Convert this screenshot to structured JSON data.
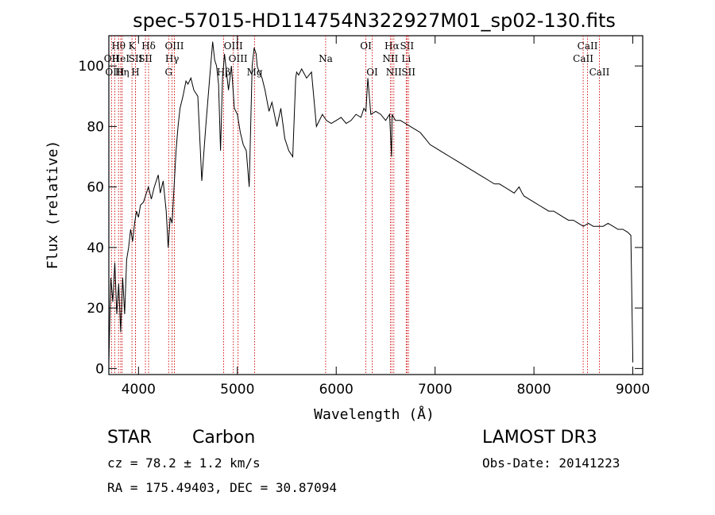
{
  "chart_data": {
    "type": "line",
    "title": "spec-57015-HD114754N322927M01_sp02-130.fits",
    "xlabel": "Wavelength (Å)",
    "ylabel": "Flux (relative)",
    "xlim": [
      3700,
      9100
    ],
    "ylim": [
      -2,
      110
    ],
    "x_ticks": [
      4000,
      5000,
      6000,
      7000,
      8000,
      9000
    ],
    "y_ticks": [
      0,
      20,
      40,
      60,
      80,
      100
    ],
    "grid": false,
    "line_color": "#000000",
    "marker_color": "#cc0000",
    "series": [
      {
        "x": [
          3700,
          3720,
          3740,
          3760,
          3780,
          3800,
          3820,
          3840,
          3860,
          3880,
          3900,
          3920,
          3940,
          3960,
          3980,
          4000,
          4020,
          4050,
          4080,
          4100,
          4130,
          4160,
          4200,
          4220,
          4250,
          4280,
          4300,
          4320,
          4340,
          4360,
          4380,
          4400,
          4420,
          4450,
          4480,
          4500,
          4530,
          4560,
          4600,
          4640,
          4680,
          4720,
          4750,
          4770,
          4790,
          4810,
          4830,
          4850,
          4870,
          4890,
          4910,
          4940,
          4970,
          5000,
          5030,
          5060,
          5090,
          5120,
          5150,
          5170,
          5190,
          5200,
          5220,
          5250,
          5280,
          5320,
          5350,
          5400,
          5440,
          5480,
          5520,
          5560,
          5590,
          5600,
          5620,
          5650,
          5700,
          5750,
          5800,
          5860,
          5900,
          5950,
          6000,
          6050,
          6100,
          6150,
          6200,
          6250,
          6280,
          6300,
          6320,
          6350,
          6400,
          6450,
          6500,
          6540,
          6560,
          6565,
          6580,
          6600,
          6650,
          6700,
          6750,
          6800,
          6850,
          6900,
          6950,
          7000,
          7050,
          7100,
          7150,
          7200,
          7250,
          7300,
          7350,
          7400,
          7450,
          7500,
          7550,
          7600,
          7650,
          7700,
          7750,
          7800,
          7850,
          7880,
          7900,
          7950,
          8000,
          8050,
          8100,
          8150,
          8200,
          8250,
          8300,
          8350,
          8400,
          8450,
          8500,
          8550,
          8600,
          8650,
          8700,
          8750,
          8800,
          8850,
          8900,
          8950,
          8980,
          9000
        ],
        "y": [
          2,
          30,
          22,
          35,
          18,
          28,
          12,
          30,
          18,
          36,
          40,
          46,
          42,
          48,
          52,
          50,
          54,
          55,
          58,
          60,
          56,
          60,
          64,
          58,
          62,
          52,
          40,
          50,
          48,
          60,
          72,
          80,
          86,
          90,
          95,
          94,
          96,
          92,
          90,
          62,
          80,
          96,
          108,
          102,
          100,
          94,
          72,
          96,
          104,
          98,
          92,
          100,
          86,
          84,
          78,
          74,
          72,
          60,
          100,
          106,
          104,
          100,
          98,
          96,
          92,
          85,
          88,
          80,
          86,
          76,
          72,
          70,
          96,
          98,
          97,
          99,
          96,
          98,
          80,
          84,
          82,
          81,
          82,
          83,
          81,
          82,
          84,
          83,
          86,
          85,
          96,
          84,
          85,
          84,
          82,
          84,
          70,
          84,
          83,
          82,
          82,
          81,
          80,
          79,
          78,
          76,
          74,
          73,
          72,
          71,
          70,
          69,
          68,
          67,
          66,
          65,
          64,
          63,
          62,
          61,
          61,
          60,
          59,
          58,
          60,
          58,
          57,
          56,
          55,
          54,
          53,
          52,
          52,
          51,
          50,
          49,
          49,
          48,
          47,
          48,
          47,
          47,
          47,
          48,
          47,
          46,
          46,
          45,
          44,
          2
        ]
      }
    ],
    "line_markers": [
      {
        "label": "Hθ",
        "wavelength": 3798,
        "row": 0
      },
      {
        "label": "OII",
        "wavelength": 3727,
        "row": 1
      },
      {
        "label": "OIII",
        "wavelength": 3760,
        "row": 2
      },
      {
        "label": "HeI",
        "wavelength": 3820,
        "row": 1
      },
      {
        "label": "Hη",
        "wavelength": 3835,
        "row": 2
      },
      {
        "label": "K",
        "wavelength": 3934,
        "row": 0
      },
      {
        "label": "SII",
        "wavelength": 3970,
        "row": 1
      },
      {
        "label": "H",
        "wavelength": 3969,
        "row": 2
      },
      {
        "label": "Hδ",
        "wavelength": 4102,
        "row": 0
      },
      {
        "label": "SII",
        "wavelength": 4070,
        "row": 1
      },
      {
        "label": "OIII",
        "wavelength": 4363,
        "row": 0
      },
      {
        "label": "Hγ",
        "wavelength": 4340,
        "row": 1
      },
      {
        "label": "G",
        "wavelength": 4305,
        "row": 2
      },
      {
        "label": "OIII",
        "wavelength": 4959,
        "row": 0
      },
      {
        "label": "OIII",
        "wavelength": 5007,
        "row": 1
      },
      {
        "label": "Hβ",
        "wavelength": 4861,
        "row": 2
      },
      {
        "label": "Mg",
        "wavelength": 5175,
        "row": 2
      },
      {
        "label": "Na",
        "wavelength": 5893,
        "row": 1
      },
      {
        "label": "OI",
        "wavelength": 6300,
        "row": 0
      },
      {
        "label": "OI",
        "wavelength": 6364,
        "row": 2
      },
      {
        "label": "Hα",
        "wavelength": 6563,
        "row": 0
      },
      {
        "label": "NII",
        "wavelength": 6548,
        "row": 1
      },
      {
        "label": "NII",
        "wavelength": 6583,
        "row": 2
      },
      {
        "label": "SII",
        "wavelength": 6716,
        "row": 0
      },
      {
        "label": "Li",
        "wavelength": 6708,
        "row": 1
      },
      {
        "label": "SII",
        "wavelength": 6731,
        "row": 2
      },
      {
        "label": "CaII",
        "wavelength": 8542,
        "row": 0
      },
      {
        "label": "CaII",
        "wavelength": 8498,
        "row": 1
      },
      {
        "label": "CaII",
        "wavelength": 8662,
        "row": 2
      }
    ]
  },
  "info": {
    "object_type": "STAR",
    "subclass": "Carbon",
    "survey": "LAMOST DR3",
    "velocity": "cz = 78.2 ± 1.2 km/s",
    "obs_date": "Obs-Date: 20141223",
    "coords": "RA = 175.49403, DEC =  30.87094"
  }
}
